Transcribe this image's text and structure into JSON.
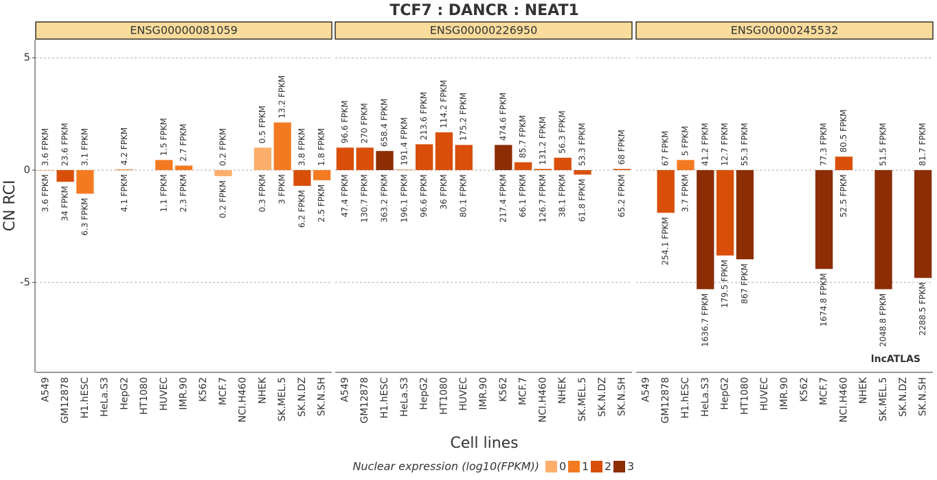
{
  "chart_data": {
    "type": "bar",
    "title": "TCF7 : DANCR : NEAT1",
    "x_label": "Cell lines",
    "y_label": "CN RCI",
    "watermark": "lncATLAS",
    "ylim": [
      -9,
      5.8
    ],
    "yticks": [
      -5,
      0,
      5
    ],
    "grid": true,
    "categories": [
      "A549",
      "GM12878",
      "H1.hESC",
      "HeLa.S3",
      "HepG2",
      "HT1080",
      "HUVEC",
      "IMR.90",
      "K562",
      "MCF.7",
      "NCI.H460",
      "NHEK",
      "SK.MEL.5",
      "SK.N.DZ",
      "SK.N.SH"
    ],
    "legend": {
      "title": "Nuclear expression (log10(FPKM))",
      "levels": [
        {
          "name": "0",
          "color": "#fdae6b"
        },
        {
          "name": "1",
          "color": "#f47a22"
        },
        {
          "name": "2",
          "color": "#d94f0a"
        },
        {
          "name": "3",
          "color": "#8c2d04"
        }
      ]
    },
    "panels": [
      {
        "name": "ENSG00000081059",
        "values": [
          0,
          -0.52,
          -1.05,
          null,
          0.03,
          null,
          0.45,
          0.2,
          null,
          -0.27,
          null,
          1.0,
          2.12,
          -0.7,
          -0.45
        ],
        "levels": [
          1,
          2,
          1,
          null,
          1,
          null,
          1,
          1,
          null,
          0,
          null,
          0,
          1,
          2,
          1
        ],
        "labels_top": [
          "3.6 FPKM",
          "23.6 FPKM",
          "3.1 FPKM",
          null,
          "4.2 FPKM",
          null,
          "1.5 FPKM",
          "2.7 FPKM",
          null,
          "0.2 FPKM",
          null,
          "0.5 FPKM",
          "13.2 FPKM",
          "3.8 FPKM",
          "1.8 FPKM"
        ],
        "labels_bottom": [
          "3.6 FPKM",
          "34 FPKM",
          "6.3 FPKM",
          null,
          "4.1 FPKM",
          null,
          "1.1 FPKM",
          "2.3 FPKM",
          null,
          "0.2 FPKM",
          null,
          "0.3 FPKM",
          "3 FPKM",
          "6.2 FPKM",
          "2.5 FPKM"
        ]
      },
      {
        "name": "ENSG00000226950",
        "values": [
          1.0,
          1.0,
          0.85,
          0.02,
          1.15,
          1.68,
          1.12,
          null,
          1.12,
          0.35,
          0.05,
          0.55,
          -0.2,
          null,
          0.05
        ],
        "levels": [
          2,
          2,
          3,
          2,
          2,
          2,
          2,
          null,
          3,
          2,
          2,
          2,
          2,
          null,
          2
        ],
        "labels_top": [
          "96.6 FPKM",
          "270 FPKM",
          "658.4 FPKM",
          "191.4 FPKM",
          "213.6 FPKM",
          "114.2 FPKM",
          "175.2 FPKM",
          null,
          "474.6 FPKM",
          "85.7 FPKM",
          "131.2 FPKM",
          "56.3 FPKM",
          "53.3 FPKM",
          null,
          "68 FPKM"
        ],
        "labels_bottom": [
          "47.4 FPKM",
          "130.7 FPKM",
          "363.2 FPKM",
          "196.1 FPKM",
          "96.6 FPKM",
          "36 FPKM",
          "80.1 FPKM",
          null,
          "217.4 FPKM",
          "66.1 FPKM",
          "126.7 FPKM",
          "38.1 FPKM",
          "61.8 FPKM",
          null,
          "65.2 FPKM"
        ]
      },
      {
        "name": "ENSG00000245532",
        "values": [
          null,
          -1.9,
          0.45,
          -5.3,
          -3.8,
          -3.97,
          null,
          null,
          null,
          -4.4,
          0.6,
          null,
          -5.3,
          null,
          -4.8
        ],
        "levels": [
          null,
          2,
          1,
          3,
          2,
          3,
          null,
          null,
          null,
          3,
          2,
          null,
          3,
          null,
          3
        ],
        "labels_top": [
          null,
          "67 FPKM",
          "5 FPKM",
          "41.2 FPKM",
          "12.7 FPKM",
          "55.3 FPKM",
          null,
          null,
          null,
          "77.3 FPKM",
          "80.5 FPKM",
          null,
          "51.5 FPKM",
          null,
          "81.7 FPKM"
        ],
        "labels_bottom": [
          null,
          "254.1 FPKM",
          "3.7 FPKM",
          "1636.7 FPKM",
          "179.5 FPKM",
          "867 FPKM",
          null,
          null,
          null,
          "1674.8 FPKM",
          "52.5 FPKM",
          null,
          "2048.8 FPKM",
          null,
          "2288.5 FPKM"
        ]
      }
    ]
  }
}
